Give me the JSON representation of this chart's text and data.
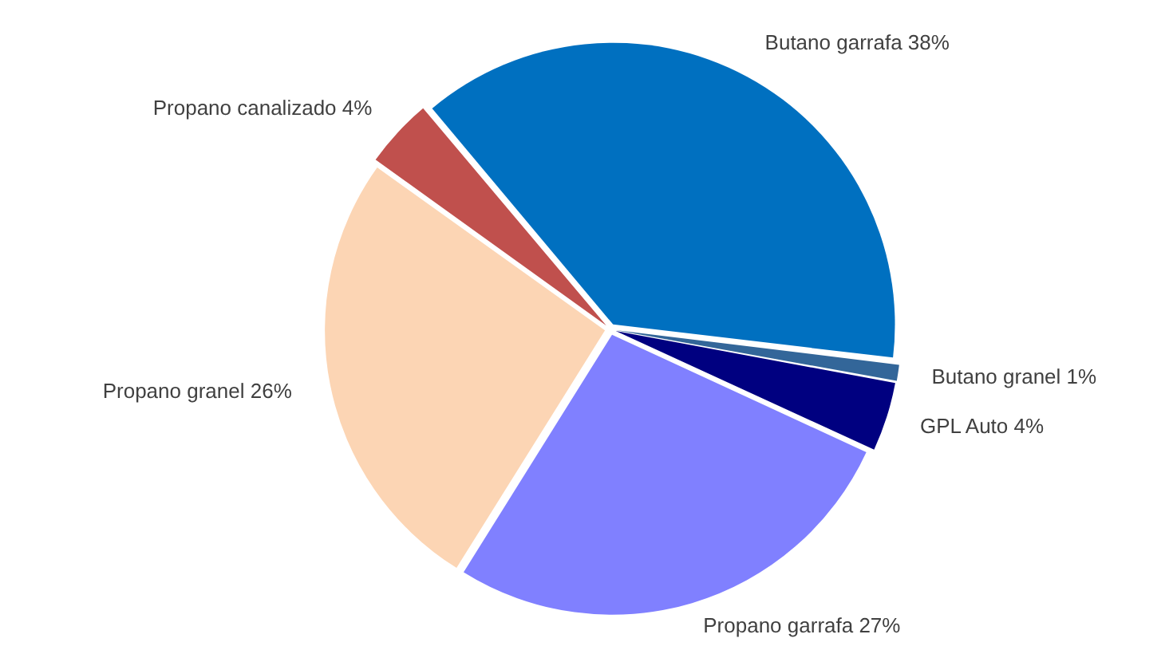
{
  "chart_data": {
    "type": "pie",
    "categories": [
      "Butano garrafa",
      "Butano granel",
      "GPL Auto",
      "Propano garrafa",
      "Propano granel",
      "Propano canalizado"
    ],
    "values": [
      38,
      1,
      4,
      27,
      26,
      4
    ],
    "value_labels": [
      "38%",
      "1%",
      "4%",
      "27%",
      "26%",
      "4%"
    ],
    "colors": [
      "#0070c0",
      "#336699",
      "#000080",
      "#8080ff",
      "#fcd5b4",
      "#c0504d"
    ],
    "legend": false
  }
}
